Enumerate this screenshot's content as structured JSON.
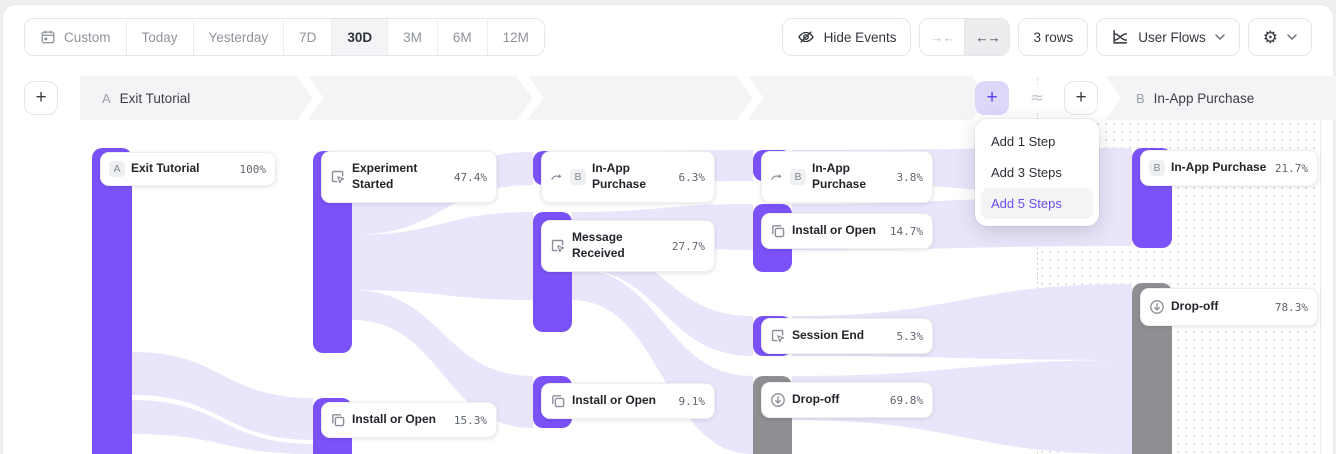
{
  "colors": {
    "accent_purple": "#7b52f7",
    "link_lavender": "#e9e4fa",
    "dropoff_gray": "#8e8e93",
    "banner_gray": "#f4f4f6",
    "menu_highlight_text": "#6a4ef0"
  },
  "icons": {
    "gear": "⚙"
  },
  "toolbar": {
    "date_ranges": [
      "Custom",
      "Today",
      "Yesterday",
      "7D",
      "30D",
      "3M",
      "6M",
      "12M"
    ],
    "active_range": "30D",
    "hide_events_label": "Hide Events",
    "collapse_icon": "→←",
    "expand_icon": "←→",
    "rows_label": "3 rows",
    "view_label": "User Flows"
  },
  "flow_header": {
    "add_button": "+",
    "group_a": {
      "letter": "A",
      "label": "Exit Tutorial"
    },
    "group_b": {
      "letter": "B",
      "label": "In-App Purchase"
    },
    "approx_symbol": "≈"
  },
  "add_steps_menu": {
    "items": [
      {
        "label": "Add 1 Step",
        "highlighted": false
      },
      {
        "label": "Add 3 Steps",
        "highlighted": false
      },
      {
        "label": "Add 5 Steps",
        "highlighted": true
      }
    ]
  },
  "chart_data": {
    "type": "sankey",
    "flow_start": "Exit Tutorial",
    "flow_end": "In-App Purchase",
    "nodes": [
      {
        "id": "exit-tutorial",
        "column": 0,
        "letter": "A",
        "icon": null,
        "label": "Exit Tutorial",
        "percent": "100%",
        "kind": "event",
        "bar": [
          92,
          148,
          40,
          306
        ],
        "card": [
          100,
          152,
          176,
          34
        ],
        "lines": 1
      },
      {
        "id": "experiment-started",
        "column": 1,
        "letter": null,
        "icon": "cursor-click",
        "label": "Experiment Started",
        "percent": "47.4%",
        "kind": "event",
        "bar": [
          313,
          151,
          39,
          202
        ],
        "card": [
          321,
          151,
          176,
          52
        ],
        "lines": 2
      },
      {
        "id": "install-or-open-1",
        "column": 1,
        "letter": null,
        "icon": "overlap-squares",
        "label": "Install or Open",
        "percent": "15.3%",
        "kind": "event",
        "bar": [
          313,
          398,
          39,
          56
        ],
        "card": [
          321,
          402,
          176,
          36
        ],
        "lines": 1
      },
      {
        "id": "in-app-purchase-1",
        "column": 2,
        "letter": "B",
        "skip": true,
        "icon": null,
        "label": "In-App Purchase",
        "percent": "6.3%",
        "kind": "event",
        "bar": [
          533,
          151,
          39,
          34
        ],
        "card": [
          541,
          151,
          174,
          52
        ],
        "lines": 2
      },
      {
        "id": "message-received",
        "column": 2,
        "letter": null,
        "icon": "cursor-click",
        "label": "Message Received",
        "percent": "27.7%",
        "kind": "event",
        "bar": [
          533,
          212,
          39,
          120
        ],
        "card": [
          541,
          220,
          174,
          52
        ],
        "lines": 2
      },
      {
        "id": "install-or-open-2",
        "column": 2,
        "letter": null,
        "icon": "overlap-squares",
        "label": "Install or Open",
        "percent": "9.1%",
        "kind": "event",
        "bar": [
          533,
          376,
          39,
          52
        ],
        "card": [
          541,
          383,
          174,
          36
        ],
        "lines": 1
      },
      {
        "id": "in-app-purchase-2",
        "column": 3,
        "letter": "B",
        "skip": true,
        "icon": null,
        "label": "In-App Purchase",
        "percent": "3.8%",
        "kind": "event",
        "bar": [
          753,
          150,
          39,
          31
        ],
        "card": [
          761,
          151,
          172,
          52
        ],
        "lines": 2
      },
      {
        "id": "install-or-open-3",
        "column": 3,
        "letter": null,
        "icon": "overlap-squares",
        "label": "Install or Open",
        "percent": "14.7%",
        "kind": "event",
        "bar": [
          753,
          204,
          39,
          68
        ],
        "card": [
          761,
          213,
          172,
          36
        ],
        "lines": 1
      },
      {
        "id": "session-end",
        "column": 3,
        "letter": null,
        "icon": "cursor-click",
        "label": "Session End",
        "percent": "5.3%",
        "kind": "event",
        "bar": [
          753,
          316,
          39,
          40
        ],
        "card": [
          761,
          318,
          172,
          36
        ],
        "lines": 1
      },
      {
        "id": "drop-off-1",
        "column": 3,
        "letter": null,
        "icon": "drop-off",
        "label": "Drop-off",
        "percent": "69.8%",
        "kind": "dropoff",
        "bar": [
          753,
          376,
          39,
          78
        ],
        "card": [
          761,
          382,
          172,
          36
        ],
        "lines": 1
      },
      {
        "id": "in-app-purchase-b",
        "column": 4,
        "letter": "B",
        "icon": null,
        "label": "In-App Purchase",
        "percent": "21.7%",
        "kind": "event",
        "bar": [
          1132,
          148,
          40,
          100
        ],
        "card": [
          1140,
          150,
          178,
          36
        ],
        "lines": 1
      },
      {
        "id": "drop-off-b",
        "column": 4,
        "letter": null,
        "icon": "drop-off",
        "label": "Drop-off",
        "percent": "78.3%",
        "kind": "dropoff",
        "bar": [
          1132,
          283,
          40,
          171
        ],
        "card": [
          1140,
          288,
          178,
          38
        ],
        "lines": 1
      }
    ],
    "links": [
      [
        132,
        352,
        395,
        313,
        398,
        440
      ],
      [
        132,
        400,
        434,
        313,
        444,
        454
      ],
      [
        352,
        200,
        235,
        533,
        152,
        185
      ],
      [
        352,
        235,
        290,
        533,
        212,
        300
      ],
      [
        352,
        290,
        320,
        533,
        376,
        428
      ],
      [
        572,
        152,
        185,
        753,
        150,
        181
      ],
      [
        572,
        212,
        240,
        753,
        204,
        250
      ],
      [
        572,
        240,
        268,
        753,
        316,
        356
      ],
      [
        572,
        268,
        300,
        753,
        376,
        454
      ],
      [
        792,
        150,
        181,
        1132,
        148,
        196
      ],
      [
        792,
        204,
        250,
        1132,
        196,
        246
      ],
      [
        792,
        316,
        356,
        1132,
        284,
        360
      ],
      [
        792,
        376,
        420,
        1132,
        360,
        454
      ]
    ]
  }
}
